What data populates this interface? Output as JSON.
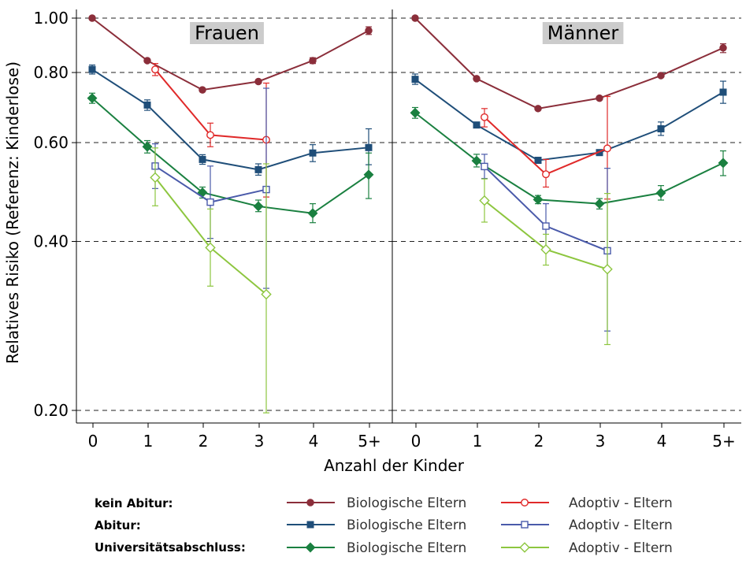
{
  "chart_data": {
    "type": "line",
    "ylabel": "Relatives Risiko (Referenz: Kinderlose)",
    "xlabel": "Anzahl der Kinder",
    "categories": [
      "0",
      "1",
      "2",
      "3",
      "4",
      "5+"
    ],
    "y_scale": "log",
    "ylim": [
      0.19,
      1.0
    ],
    "y_ticks": [
      {
        "value": 1.0,
        "label": "1.00"
      },
      {
        "value": 0.8,
        "label": "0.80"
      },
      {
        "value": 0.6,
        "label": "0.60"
      },
      {
        "value": 0.4,
        "label": "0.40"
      },
      {
        "value": 0.2,
        "label": "0.20"
      }
    ],
    "grid": "horizontal dashed",
    "panels": [
      {
        "title": "Frauen",
        "series": [
          {
            "name": "Biologische Eltern",
            "group": "kein Abitur",
            "type": "bio",
            "color": "#8b2e3a",
            "marker": "circle",
            "points": [
              {
                "x": 0,
                "y": 1.0
              },
              {
                "x": 1,
                "y": 0.84
              },
              {
                "x": 2,
                "y": 0.745
              },
              {
                "x": 3,
                "y": 0.771
              },
              {
                "x": 4,
                "y": 0.84,
                "lo": 0.83,
                "hi": 0.85
              },
              {
                "x": 5,
                "y": 0.95,
                "lo": 0.935,
                "hi": 0.965
              }
            ]
          },
          {
            "name": "Biologische Eltern",
            "group": "Abitur",
            "type": "bio",
            "color": "#1f4e79",
            "marker": "square",
            "points": [
              {
                "x": 0,
                "y": 0.81,
                "lo": 0.795,
                "hi": 0.825
              },
              {
                "x": 1,
                "y": 0.7,
                "lo": 0.685,
                "hi": 0.715
              },
              {
                "x": 2,
                "y": 0.56,
                "lo": 0.549,
                "hi": 0.571
              },
              {
                "x": 3,
                "y": 0.537,
                "lo": 0.525,
                "hi": 0.55
              },
              {
                "x": 4,
                "y": 0.575,
                "lo": 0.555,
                "hi": 0.595
              },
              {
                "x": 5,
                "y": 0.588,
                "lo": 0.548,
                "hi": 0.635
              }
            ]
          },
          {
            "name": "Biologische Eltern",
            "group": "Universitätsabschluss",
            "type": "bio",
            "color": "#1a8040",
            "marker": "diamond",
            "points": [
              {
                "x": 0,
                "y": 0.72,
                "lo": 0.705,
                "hi": 0.735
              },
              {
                "x": 1,
                "y": 0.59,
                "lo": 0.575,
                "hi": 0.605
              },
              {
                "x": 2,
                "y": 0.489,
                "lo": 0.478,
                "hi": 0.5
              },
              {
                "x": 3,
                "y": 0.462,
                "lo": 0.452,
                "hi": 0.474
              },
              {
                "x": 4,
                "y": 0.449,
                "lo": 0.432,
                "hi": 0.467
              },
              {
                "x": 5,
                "y": 0.526,
                "lo": 0.477,
                "hi": 0.575
              }
            ]
          },
          {
            "name": "Adoptiv - Eltern",
            "group": "kein Abitur",
            "type": "adopt",
            "color": "#e02a2a",
            "marker": "circle",
            "points": [
              {
                "x": 1,
                "y": 0.81,
                "lo": 0.79,
                "hi": 0.83
              },
              {
                "x": 2,
                "y": 0.619,
                "lo": 0.59,
                "hi": 0.65
              },
              {
                "x": 3,
                "y": 0.607,
                "lo": 0.48,
                "hi": 0.766
              }
            ]
          },
          {
            "name": "Adoptiv - Eltern",
            "group": "Abitur",
            "type": "adopt",
            "color": "#4a5aaa",
            "marker": "square",
            "points": [
              {
                "x": 1,
                "y": 0.545,
                "lo": 0.497,
                "hi": 0.597
              },
              {
                "x": 2,
                "y": 0.47,
                "lo": 0.405,
                "hi": 0.545
              },
              {
                "x": 3,
                "y": 0.495,
                "lo": 0.33,
                "hi": 0.75
              }
            ]
          },
          {
            "name": "Adoptiv - Eltern",
            "group": "Universitätsabschluss",
            "type": "adopt",
            "color": "#8dc63f",
            "marker": "diamond",
            "points": [
              {
                "x": 1,
                "y": 0.52,
                "lo": 0.463,
                "hi": 0.587
              },
              {
                "x": 2,
                "y": 0.39,
                "lo": 0.333,
                "hi": 0.457
              },
              {
                "x": 3,
                "y": 0.322,
                "lo": 0.198,
                "hi": 0.55
              }
            ]
          }
        ]
      },
      {
        "title": "Männer",
        "series": [
          {
            "name": "Biologische Eltern",
            "group": "kein Abitur",
            "type": "bio",
            "color": "#8b2e3a",
            "marker": "circle",
            "points": [
              {
                "x": 0,
                "y": 1.0
              },
              {
                "x": 1,
                "y": 0.78
              },
              {
                "x": 2,
                "y": 0.69
              },
              {
                "x": 3,
                "y": 0.72
              },
              {
                "x": 4,
                "y": 0.79
              },
              {
                "x": 5,
                "y": 0.885,
                "lo": 0.868,
                "hi": 0.9
              }
            ]
          },
          {
            "name": "Biologische Eltern",
            "group": "Abitur",
            "type": "bio",
            "color": "#1f4e79",
            "marker": "square",
            "points": [
              {
                "x": 0,
                "y": 0.778,
                "lo": 0.762,
                "hi": 0.795
              },
              {
                "x": 1,
                "y": 0.645
              },
              {
                "x": 2,
                "y": 0.558
              },
              {
                "x": 3,
                "y": 0.576
              },
              {
                "x": 4,
                "y": 0.635,
                "lo": 0.618,
                "hi": 0.653
              },
              {
                "x": 5,
                "y": 0.738,
                "lo": 0.705,
                "hi": 0.772
              }
            ]
          },
          {
            "name": "Biologische Eltern",
            "group": "Universitätsabschluss",
            "type": "bio",
            "color": "#1a8040",
            "marker": "diamond",
            "points": [
              {
                "x": 0,
                "y": 0.678,
                "lo": 0.663,
                "hi": 0.693
              },
              {
                "x": 1,
                "y": 0.557,
                "lo": 0.543,
                "hi": 0.572
              },
              {
                "x": 2,
                "y": 0.475,
                "lo": 0.467,
                "hi": 0.483
              },
              {
                "x": 3,
                "y": 0.467,
                "lo": 0.457,
                "hi": 0.477
              },
              {
                "x": 4,
                "y": 0.488,
                "lo": 0.474,
                "hi": 0.503
              },
              {
                "x": 5,
                "y": 0.552,
                "lo": 0.524,
                "hi": 0.58
              }
            ]
          },
          {
            "name": "Adoptiv - Eltern",
            "group": "kein Abitur",
            "type": "adopt",
            "color": "#e02a2a",
            "marker": "circle",
            "points": [
              {
                "x": 1,
                "y": 0.666,
                "lo": 0.64,
                "hi": 0.69
              },
              {
                "x": 2,
                "y": 0.527,
                "lo": 0.5,
                "hi": 0.56
              },
              {
                "x": 3,
                "y": 0.586,
                "lo": 0.476,
                "hi": 0.725
              }
            ]
          },
          {
            "name": "Adoptiv - Eltern",
            "group": "Abitur",
            "type": "adopt",
            "color": "#4a5aaa",
            "marker": "square",
            "points": [
              {
                "x": 1,
                "y": 0.544,
                "lo": 0.518,
                "hi": 0.572
              },
              {
                "x": 2,
                "y": 0.426,
                "lo": 0.39,
                "hi": 0.467
              },
              {
                "x": 3,
                "y": 0.385,
                "lo": 0.277,
                "hi": 0.54
              }
            ]
          },
          {
            "name": "Adoptiv - Eltern",
            "group": "Universitätsabschluss",
            "type": "adopt",
            "color": "#8dc63f",
            "marker": "diamond",
            "points": [
              {
                "x": 1,
                "y": 0.473,
                "lo": 0.433,
                "hi": 0.517
              },
              {
                "x": 2,
                "y": 0.387,
                "lo": 0.363,
                "hi": 0.412
              },
              {
                "x": 3,
                "y": 0.357,
                "lo": 0.262,
                "hi": 0.487
              }
            ]
          }
        ]
      }
    ]
  },
  "legend": {
    "groups": [
      "kein Abitur:",
      "Abitur:",
      "Universitätsabschluss:"
    ],
    "bio_label": "Biologische Eltern",
    "adopt_label": "Adoptiv - Eltern"
  }
}
